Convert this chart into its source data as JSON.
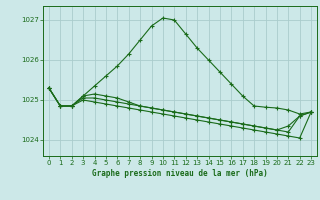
{
  "title": "Graphe pression niveau de la mer (hPa)",
  "bg_color": "#cce8e8",
  "grid_color": "#aacccc",
  "line_color": "#1a6b1a",
  "marker_color": "#1a6b1a",
  "xlim": [
    -0.5,
    23.5
  ],
  "ylim": [
    1023.6,
    1027.35
  ],
  "yticks": [
    1024,
    1025,
    1026,
    1027
  ],
  "xticks": [
    0,
    1,
    2,
    3,
    4,
    5,
    6,
    7,
    8,
    9,
    10,
    11,
    12,
    13,
    14,
    15,
    16,
    17,
    18,
    19,
    20,
    21,
    22,
    23
  ],
  "series": [
    [
      1025.3,
      1024.85,
      1024.85,
      1025.1,
      1025.35,
      1025.6,
      1025.85,
      1026.15,
      1026.5,
      1026.85,
      1027.05,
      1027.0,
      1026.65,
      1026.3,
      1026.0,
      1025.7,
      1025.4,
      1025.1,
      1024.85,
      1024.82,
      1024.8,
      1024.75,
      1024.65,
      1024.7
    ],
    [
      1025.3,
      1024.85,
      1024.85,
      1025.1,
      1025.15,
      1025.1,
      1025.05,
      1024.95,
      1024.85,
      1024.8,
      1024.75,
      1024.7,
      1024.65,
      1024.6,
      1024.55,
      1024.5,
      1024.45,
      1024.4,
      1024.35,
      1024.3,
      1024.25,
      1024.2,
      1024.6,
      1024.7
    ],
    [
      1025.3,
      1024.85,
      1024.85,
      1025.05,
      1025.05,
      1025.0,
      1024.95,
      1024.9,
      1024.85,
      1024.8,
      1024.75,
      1024.7,
      1024.65,
      1024.6,
      1024.55,
      1024.5,
      1024.45,
      1024.4,
      1024.35,
      1024.3,
      1024.25,
      1024.35,
      1024.6,
      1024.7
    ],
    [
      1025.3,
      1024.85,
      1024.85,
      1025.0,
      1024.95,
      1024.9,
      1024.85,
      1024.8,
      1024.75,
      1024.7,
      1024.65,
      1024.6,
      1024.55,
      1024.5,
      1024.45,
      1024.4,
      1024.35,
      1024.3,
      1024.25,
      1024.2,
      1024.15,
      1024.1,
      1024.05,
      1024.7
    ]
  ]
}
